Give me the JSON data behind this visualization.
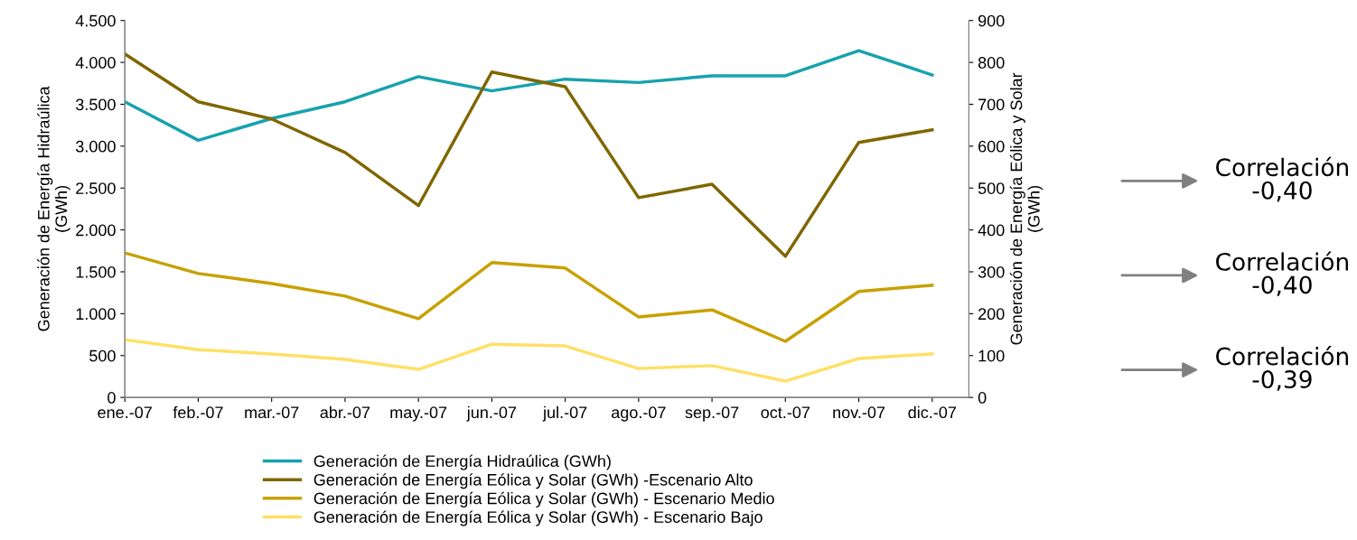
{
  "chart_data": {
    "type": "line",
    "categories": [
      "ene.-07",
      "feb.-07",
      "mar.-07",
      "abr.-07",
      "may.-07",
      "jun.-07",
      "jul.-07",
      "ago.-07",
      "sep.-07",
      "oct.-07",
      "nov.-07",
      "dic.-07"
    ],
    "series": [
      {
        "name": "Generación de Energía Hidraúlica (GWh)",
        "color": "#17a2ae",
        "values": [
          3530,
          3070,
          3330,
          3530,
          3830,
          3660,
          3800,
          3760,
          3840,
          3840,
          4140,
          3850
        ]
      },
      {
        "name": "Generación de Energía Eólica y Solar (GWh) -Escenario Alto",
        "color": "#806600",
        "axis": "y2",
        "values": [
          820,
          706,
          665,
          585,
          458,
          777,
          742,
          477,
          509,
          337,
          609,
          639
        ]
      },
      {
        "name": "Generación de Energía Eólica y Solar (GWh) - Escenario Medio",
        "color": "#c8a000",
        "axis": "y2",
        "values": [
          345,
          296,
          272,
          242,
          188,
          322,
          309,
          192,
          209,
          134,
          253,
          268
        ]
      },
      {
        "name": "Generación de Energía Eólica y Solar (GWh) - Escenario Bajo",
        "color": "#ffe066",
        "axis": "y2",
        "values": [
          138,
          114,
          104,
          91,
          67,
          127,
          123,
          69,
          76,
          39,
          93,
          104
        ]
      }
    ],
    "ylabel": "Generación de Energía Hidraúlica\n(GWh)",
    "y2label": "Generación de Energía Eólica y Solar\n(GWh)",
    "ylim": [
      0,
      4500
    ],
    "yticks": [
      0,
      500,
      {
        "value": 1000,
        "label": "1.000"
      },
      {
        "value": 1500,
        "label": "1.500"
      },
      {
        "value": 2000,
        "label": "2.000"
      },
      {
        "value": 2500,
        "label": "2.500"
      },
      {
        "value": 3000,
        "label": "3.000"
      },
      {
        "value": 3500,
        "label": "3.500"
      },
      {
        "value": 4000,
        "label": "4.000"
      },
      {
        "value": 4500,
        "label": "4.500"
      }
    ],
    "y2lim": [
      0,
      900
    ],
    "y2ticks": [
      0,
      100,
      200,
      300,
      400,
      500,
      600,
      700,
      800,
      900
    ],
    "grid": false,
    "legend": "bottom",
    "marker": "none",
    "line_style": "solid",
    "annotations": [
      "Correlación\n-0,40",
      "Correlación\n-0,40",
      "Correlación\n-0,39"
    ]
  }
}
